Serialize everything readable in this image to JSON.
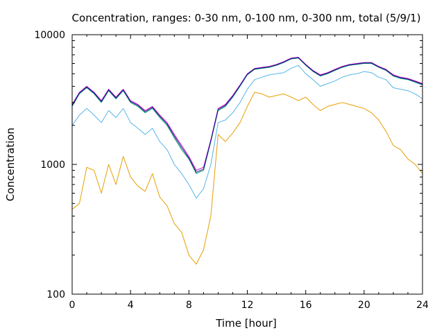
{
  "chart_data": {
    "type": "line",
    "title": "Concentration, ranges: 0-30 nm, 0-100 nm, 0-300 nm, total (5/9/1)",
    "xlabel": "Time [hour]",
    "ylabel": "Concentration",
    "xlim": [
      0,
      24
    ],
    "ylim": [
      100,
      10000
    ],
    "yscale": "log",
    "x_ticks": [
      0,
      4,
      8,
      12,
      16,
      20,
      24
    ],
    "x_tick_labels": [
      "0",
      "4",
      "8",
      "12",
      "16",
      "20",
      "24"
    ],
    "y_ticks": [
      100,
      1000,
      10000
    ],
    "y_tick_labels": [
      "100",
      "1000",
      "10000"
    ],
    "grid": false,
    "legend": "none",
    "x": [
      0,
      0.5,
      1,
      1.5,
      2,
      2.5,
      3,
      3.5,
      4,
      4.5,
      5,
      5.5,
      6,
      6.5,
      7,
      7.5,
      8,
      8.5,
      9,
      9.5,
      10,
      10.5,
      11,
      11.5,
      12,
      12.5,
      13,
      13.5,
      14,
      14.5,
      15,
      15.5,
      16,
      16.5,
      17,
      17.5,
      18,
      18.5,
      19,
      19.5,
      20,
      20.5,
      21,
      21.5,
      22,
      22.5,
      23,
      23.5,
      24
    ],
    "series": [
      {
        "color": "#e69f00",
        "values": [
          450,
          500,
          950,
          900,
          600,
          1000,
          700,
          1150,
          800,
          680,
          620,
          850,
          560,
          480,
          350,
          300,
          200,
          170,
          220,
          400,
          1700,
          1500,
          1750,
          2100,
          2800,
          3600,
          3500,
          3300,
          3400,
          3500,
          3300,
          3100,
          3300,
          2900,
          2600,
          2800,
          2900,
          3000,
          2900,
          2800,
          2700,
          2500,
          2200,
          1800,
          1400,
          1300,
          1100,
          1000,
          850
        ]
      },
      {
        "color": "#56b4e9",
        "values": [
          2000,
          2400,
          2700,
          2400,
          2100,
          2600,
          2300,
          2700,
          2100,
          1900,
          1700,
          1900,
          1500,
          1300,
          1000,
          850,
          700,
          550,
          650,
          1000,
          2100,
          2200,
          2500,
          3000,
          3800,
          4500,
          4700,
          4900,
          5000,
          5100,
          5500,
          5800,
          5000,
          4500,
          4000,
          4200,
          4400,
          4700,
          4900,
          5000,
          5200,
          5100,
          4700,
          4500,
          3900,
          3800,
          3700,
          3500,
          3200
        ]
      },
      {
        "color": "#009e73",
        "values": [
          2800,
          3500,
          3900,
          3500,
          3000,
          3700,
          3200,
          3700,
          3000,
          2800,
          2500,
          2700,
          2300,
          2000,
          1600,
          1300,
          1100,
          850,
          900,
          1500,
          2600,
          2800,
          3300,
          4000,
          4900,
          5400,
          5500,
          5600,
          5800,
          6100,
          6500,
          6600,
          5800,
          5200,
          4800,
          5000,
          5300,
          5600,
          5800,
          5900,
          6000,
          6000,
          5600,
          5300,
          4800,
          4600,
          4500,
          4300,
          4100
        ]
      },
      {
        "color": "#c000c0",
        "values": [
          2900,
          3600,
          4000,
          3600,
          3100,
          3800,
          3300,
          3800,
          3100,
          2900,
          2600,
          2800,
          2400,
          2100,
          1700,
          1400,
          1150,
          900,
          950,
          1550,
          2700,
          2900,
          3400,
          4100,
          5000,
          5500,
          5600,
          5700,
          5900,
          6200,
          6600,
          6700,
          5900,
          5300,
          4900,
          5100,
          5400,
          5700,
          5900,
          6000,
          6100,
          6100,
          5700,
          5400,
          4900,
          4700,
          4600,
          4400,
          4200
        ]
      },
      {
        "color": "#1a1a8c",
        "values": [
          2850,
          3550,
          3950,
          3550,
          3050,
          3750,
          3250,
          3750,
          3050,
          2850,
          2550,
          2750,
          2350,
          2050,
          1650,
          1350,
          1120,
          870,
          920,
          1520,
          2650,
          2850,
          3350,
          4050,
          4950,
          5450,
          5550,
          5650,
          5850,
          6150,
          6550,
          6650,
          5850,
          5250,
          4850,
          5050,
          5350,
          5650,
          5850,
          5950,
          6050,
          6050,
          5650,
          5350,
          4850,
          4650,
          4550,
          4350,
          4150
        ]
      }
    ]
  }
}
